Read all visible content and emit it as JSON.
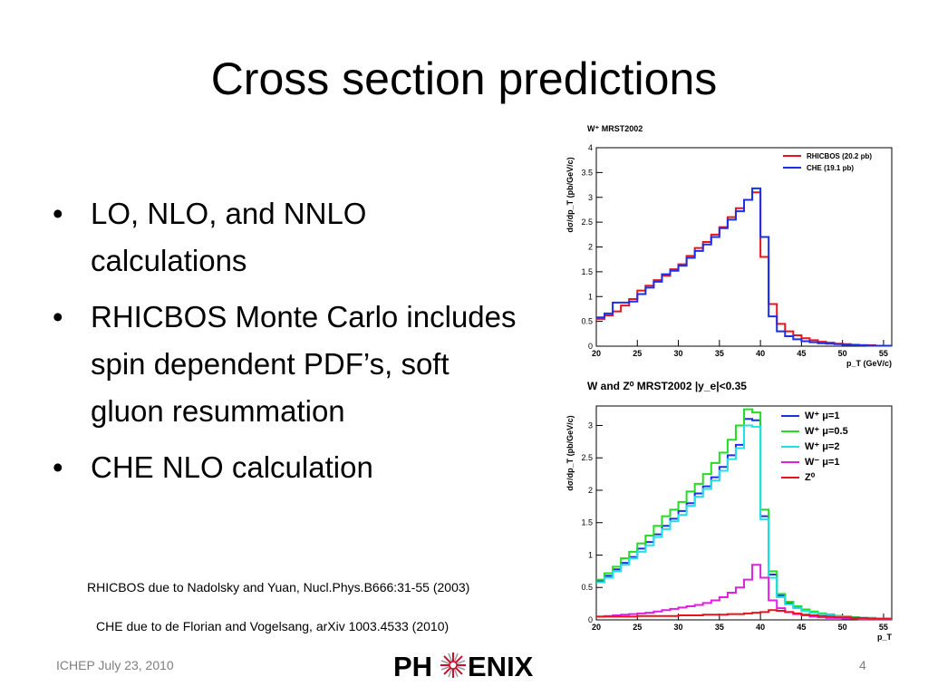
{
  "slide": {
    "title": "Cross section predictions",
    "bullets": [
      "LO, NLO, and NNLO calculations",
      "RHICBOS Monte Carlo includes spin dependent PDF’s, soft gluon resummation",
      "CHE NLO calculation"
    ],
    "bullet_glyph": "•",
    "refs": [
      "RHICBOS due to Nadolsky and Yuan, Nucl.Phys.B666:31-55 (2003)",
      "CHE due to de Florian and Vogelsang, arXiv 1003.4533 (2010)"
    ],
    "footer_left": "ICHEP July 23, 2010",
    "footer_right": "4",
    "logo": {
      "left": "PH",
      "right": "ENIX",
      "icon": "phoenix-star-icon"
    }
  },
  "chart_data": [
    {
      "type": "line",
      "step": true,
      "title": "W⁺ MRST2002",
      "xlabel": "p_T (GeV/c)",
      "ylabel": "dσ/dp_T (pb/GeV/c)",
      "xlim": [
        20,
        56
      ],
      "ylim": [
        0,
        4
      ],
      "xticks": [
        20,
        25,
        30,
        35,
        40,
        45,
        50,
        55
      ],
      "yticks": [
        0,
        0.5,
        1,
        1.5,
        2,
        2.5,
        3,
        3.5,
        4
      ],
      "legend": "top-right",
      "x": [
        20,
        21,
        22,
        23,
        24,
        25,
        26,
        27,
        28,
        29,
        30,
        31,
        32,
        33,
        34,
        35,
        36,
        37,
        38,
        39,
        40,
        41,
        42,
        43,
        44,
        45,
        46,
        47,
        48,
        49,
        50,
        51,
        52,
        53,
        54,
        55
      ],
      "series": [
        {
          "name": "RHICBOS (20.2 pb)",
          "color": "#e8141c",
          "values": [
            0.55,
            0.62,
            0.7,
            0.82,
            0.95,
            1.12,
            1.22,
            1.33,
            1.42,
            1.55,
            1.65,
            1.82,
            1.98,
            2.1,
            2.25,
            2.4,
            2.6,
            2.78,
            2.95,
            3.1,
            1.8,
            0.85,
            0.45,
            0.3,
            0.22,
            0.16,
            0.12,
            0.09,
            0.07,
            0.05,
            0.04,
            0.03,
            0.02,
            0.02,
            0.01,
            0.01
          ]
        },
        {
          "name": "CHE (19.1 pb)",
          "color": "#1c2ee8",
          "values": [
            0.58,
            0.66,
            0.88,
            0.88,
            0.9,
            1.05,
            1.18,
            1.3,
            1.45,
            1.52,
            1.62,
            1.78,
            1.92,
            2.05,
            2.2,
            2.38,
            2.55,
            2.72,
            2.95,
            3.18,
            2.2,
            0.6,
            0.3,
            0.2,
            0.14,
            0.1,
            0.08,
            0.06,
            0.05,
            0.04,
            0.03,
            0.02,
            0.02,
            0.01,
            0.01,
            0.01
          ]
        }
      ]
    },
    {
      "type": "line",
      "step": true,
      "title": "W and Z⁰ MRST2002 |y_e|<0.35",
      "xlabel": "p_T",
      "ylabel": "dσ/dp_T (pb/GeV/c)",
      "xlim": [
        20,
        56
      ],
      "ylim": [
        0,
        3.3
      ],
      "xticks": [
        20,
        25,
        30,
        35,
        40,
        45,
        50,
        55
      ],
      "yticks": [
        0,
        0.5,
        1,
        1.5,
        2,
        2.5,
        3
      ],
      "legend": "top-right",
      "x": [
        20,
        21,
        22,
        23,
        24,
        25,
        26,
        27,
        28,
        29,
        30,
        31,
        32,
        33,
        34,
        35,
        36,
        37,
        38,
        39,
        40,
        41,
        42,
        43,
        44,
        45,
        46,
        47,
        48,
        49,
        50,
        51,
        52,
        53,
        54,
        55
      ],
      "series": [
        {
          "name": "W⁺ μ=1",
          "color": "#1c2ee8",
          "values": [
            0.6,
            0.68,
            0.78,
            0.88,
            0.97,
            1.1,
            1.2,
            1.32,
            1.45,
            1.56,
            1.68,
            1.8,
            1.95,
            2.06,
            2.2,
            2.36,
            2.54,
            2.7,
            3.1,
            3.08,
            1.6,
            0.7,
            0.38,
            0.26,
            0.2,
            0.15,
            0.12,
            0.1,
            0.08,
            0.06,
            0.05,
            0.04,
            0.03,
            0.03,
            0.02,
            0.02
          ]
        },
        {
          "name": "W⁺ μ=0.5",
          "color": "#22dd22",
          "values": [
            0.62,
            0.72,
            0.82,
            0.95,
            1.05,
            1.18,
            1.3,
            1.45,
            1.6,
            1.7,
            1.82,
            1.98,
            2.1,
            2.25,
            2.42,
            2.58,
            2.78,
            3.0,
            3.25,
            3.2,
            1.7,
            0.75,
            0.4,
            0.28,
            0.21,
            0.16,
            0.13,
            0.1,
            0.08,
            0.06,
            0.05,
            0.04,
            0.03,
            0.03,
            0.02,
            0.02
          ]
        },
        {
          "name": "W⁺ μ=2",
          "color": "#22e0e8",
          "values": [
            0.58,
            0.65,
            0.75,
            0.85,
            0.95,
            1.05,
            1.15,
            1.28,
            1.4,
            1.52,
            1.62,
            1.76,
            1.9,
            2.02,
            2.15,
            2.3,
            2.48,
            2.65,
            3.0,
            2.98,
            1.55,
            0.65,
            0.35,
            0.24,
            0.18,
            0.14,
            0.11,
            0.09,
            0.07,
            0.05,
            0.04,
            0.03,
            0.03,
            0.02,
            0.02,
            0.02
          ]
        },
        {
          "name": "W⁻ μ=1",
          "color": "#e020e0",
          "values": [
            0.05,
            0.06,
            0.07,
            0.08,
            0.09,
            0.1,
            0.11,
            0.13,
            0.15,
            0.17,
            0.19,
            0.21,
            0.23,
            0.26,
            0.3,
            0.35,
            0.42,
            0.5,
            0.62,
            0.85,
            0.65,
            0.3,
            0.18,
            0.12,
            0.09,
            0.07,
            0.05,
            0.04,
            0.03,
            0.03,
            0.02,
            0.02,
            0.01,
            0.01,
            0.01,
            0.01
          ]
        },
        {
          "name": "Z⁰",
          "color": "#e8141c",
          "values": [
            0.05,
            0.05,
            0.05,
            0.05,
            0.05,
            0.06,
            0.06,
            0.06,
            0.06,
            0.06,
            0.07,
            0.07,
            0.07,
            0.08,
            0.08,
            0.08,
            0.09,
            0.09,
            0.1,
            0.11,
            0.12,
            0.15,
            0.14,
            0.12,
            0.1,
            0.08,
            0.07,
            0.06,
            0.05,
            0.04,
            0.04,
            0.03,
            0.03,
            0.02,
            0.02,
            0.02
          ]
        }
      ]
    }
  ]
}
